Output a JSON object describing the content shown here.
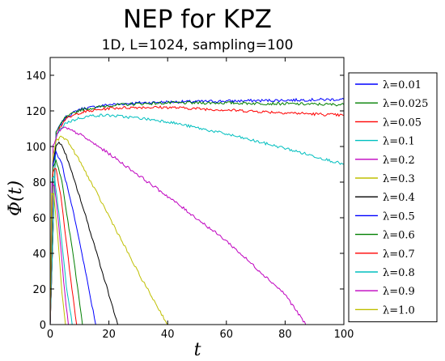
{
  "chart_data": {
    "type": "line",
    "title": "NEP for KPZ",
    "subtitle": "1D, L=1024, sampling=100",
    "xlabel": "t",
    "ylabel": "Φ(t)",
    "xlim": [
      0,
      100
    ],
    "ylim": [
      0,
      150
    ],
    "x_ticks": [
      "0",
      "20",
      "40",
      "60",
      "80",
      "100"
    ],
    "y_ticks": [
      "0",
      "20",
      "40",
      "60",
      "80",
      "100",
      "120",
      "140"
    ],
    "grid": false,
    "legend_position": "outside-right",
    "series": [
      {
        "name": "λ=0.01",
        "color": "#0000ff",
        "x": [
          0,
          2,
          5,
          10,
          20,
          30,
          40,
          60,
          80,
          100
        ],
        "y": [
          0,
          108,
          116,
          121,
          123.5,
          124.5,
          125,
          125.5,
          126,
          126.5
        ]
      },
      {
        "name": "λ=0.025",
        "color": "#007f00",
        "x": [
          0,
          2,
          5,
          10,
          20,
          30,
          40,
          60,
          80,
          100
        ],
        "y": [
          0,
          108,
          116,
          120.5,
          123,
          124,
          124.5,
          124.5,
          124,
          123.5
        ]
      },
      {
        "name": "λ=0.05",
        "color": "#ff0000",
        "x": [
          0,
          2,
          5,
          10,
          20,
          30,
          40,
          60,
          80,
          100
        ],
        "y": [
          0,
          107,
          115,
          119,
          121.5,
          122,
          122,
          120.5,
          119,
          117.5
        ]
      },
      {
        "name": "λ=0.1",
        "color": "#00bfbf",
        "x": [
          0,
          2,
          5,
          10,
          15,
          20,
          30,
          40,
          60,
          80,
          100
        ],
        "y": [
          0,
          106,
          113,
          116,
          117.5,
          117.5,
          116,
          114,
          107,
          99,
          90
        ]
      },
      {
        "name": "λ=0.2",
        "color": "#bf00bf",
        "x": [
          0,
          1,
          3,
          5,
          10,
          20,
          30,
          40,
          60,
          80,
          87
        ],
        "y": [
          0,
          100,
          109,
          110.5,
          107,
          96,
          84,
          72,
          47,
          17,
          0
        ]
      },
      {
        "name": "λ=0.3",
        "color": "#bfbf00",
        "x": [
          0,
          1,
          2,
          4,
          6,
          10,
          20,
          30,
          40
        ],
        "y": [
          0,
          95,
          103,
          106,
          103,
          92,
          61,
          29,
          0
        ]
      },
      {
        "name": "λ=0.4",
        "color": "#000000",
        "x": [
          0,
          1,
          2,
          3,
          5,
          10,
          15,
          20,
          23
        ],
        "y": [
          0,
          90,
          100,
          103,
          97,
          72,
          45,
          17,
          0
        ]
      },
      {
        "name": "λ=0.5",
        "color": "#0000ff",
        "x": [
          0,
          1,
          2,
          4,
          8,
          12,
          15.5
        ],
        "y": [
          0,
          89,
          97,
          90,
          62,
          30,
          0
        ]
      },
      {
        "name": "λ=0.6",
        "color": "#007f00",
        "x": [
          0,
          1,
          2,
          4,
          8,
          11
        ],
        "y": [
          0,
          88,
          93,
          80,
          37,
          0
        ]
      },
      {
        "name": "λ=0.7",
        "color": "#ff0000",
        "x": [
          0,
          0.8,
          2,
          4,
          7,
          9
        ],
        "y": [
          0,
          85,
          88,
          68,
          25,
          0
        ]
      },
      {
        "name": "λ=0.8",
        "color": "#00bfbf",
        "x": [
          0,
          0.7,
          1.5,
          3,
          5.5,
          7.5
        ],
        "y": [
          0,
          82,
          83,
          62,
          22,
          0
        ]
      },
      {
        "name": "λ=0.9",
        "color": "#bf00bf",
        "x": [
          0,
          0.6,
          1.5,
          3,
          5,
          6.2
        ],
        "y": [
          0,
          79,
          78,
          55,
          17,
          0
        ]
      },
      {
        "name": "λ=1.0",
        "color": "#bfbf00",
        "x": [
          0,
          0.5,
          1.2,
          2.5,
          4,
          5.2
        ],
        "y": [
          0,
          74,
          73,
          52,
          18,
          0
        ]
      }
    ]
  }
}
